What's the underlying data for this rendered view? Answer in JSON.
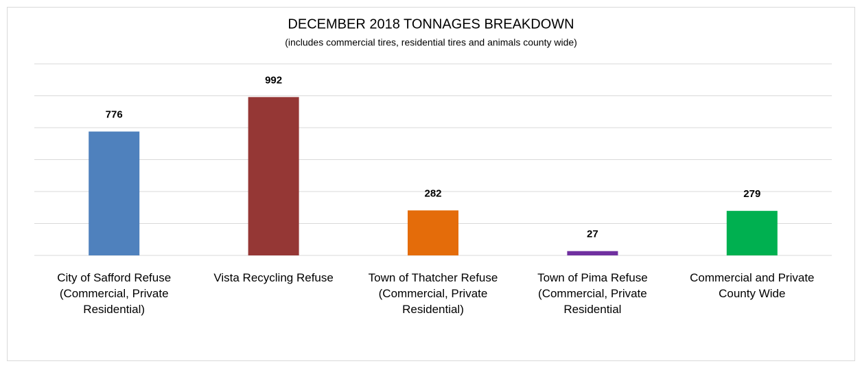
{
  "chart_data": {
    "type": "bar",
    "title": "DECEMBER 2018 TONNAGES BREAKDOWN",
    "subtitle": "(includes commercial tires, residential tires and animals county wide)",
    "categories": [
      "City of Safford Refuse (Commercial, Private Residential)",
      "Vista Recycling Refuse",
      "Town of Thatcher Refuse (Commercial, Private Residential)",
      "Town of Pima Refuse (Commercial, Private Residential",
      "Commercial and Private County Wide"
    ],
    "values": [
      776,
      992,
      282,
      27,
      279
    ],
    "colors": [
      "#4f81bd",
      "#953735",
      "#e46c0a",
      "#7030a0",
      "#00b050"
    ],
    "ylim": [
      0,
      1200
    ],
    "yticks": [
      0,
      200,
      400,
      600,
      800,
      1000,
      1200
    ],
    "grid": true
  }
}
